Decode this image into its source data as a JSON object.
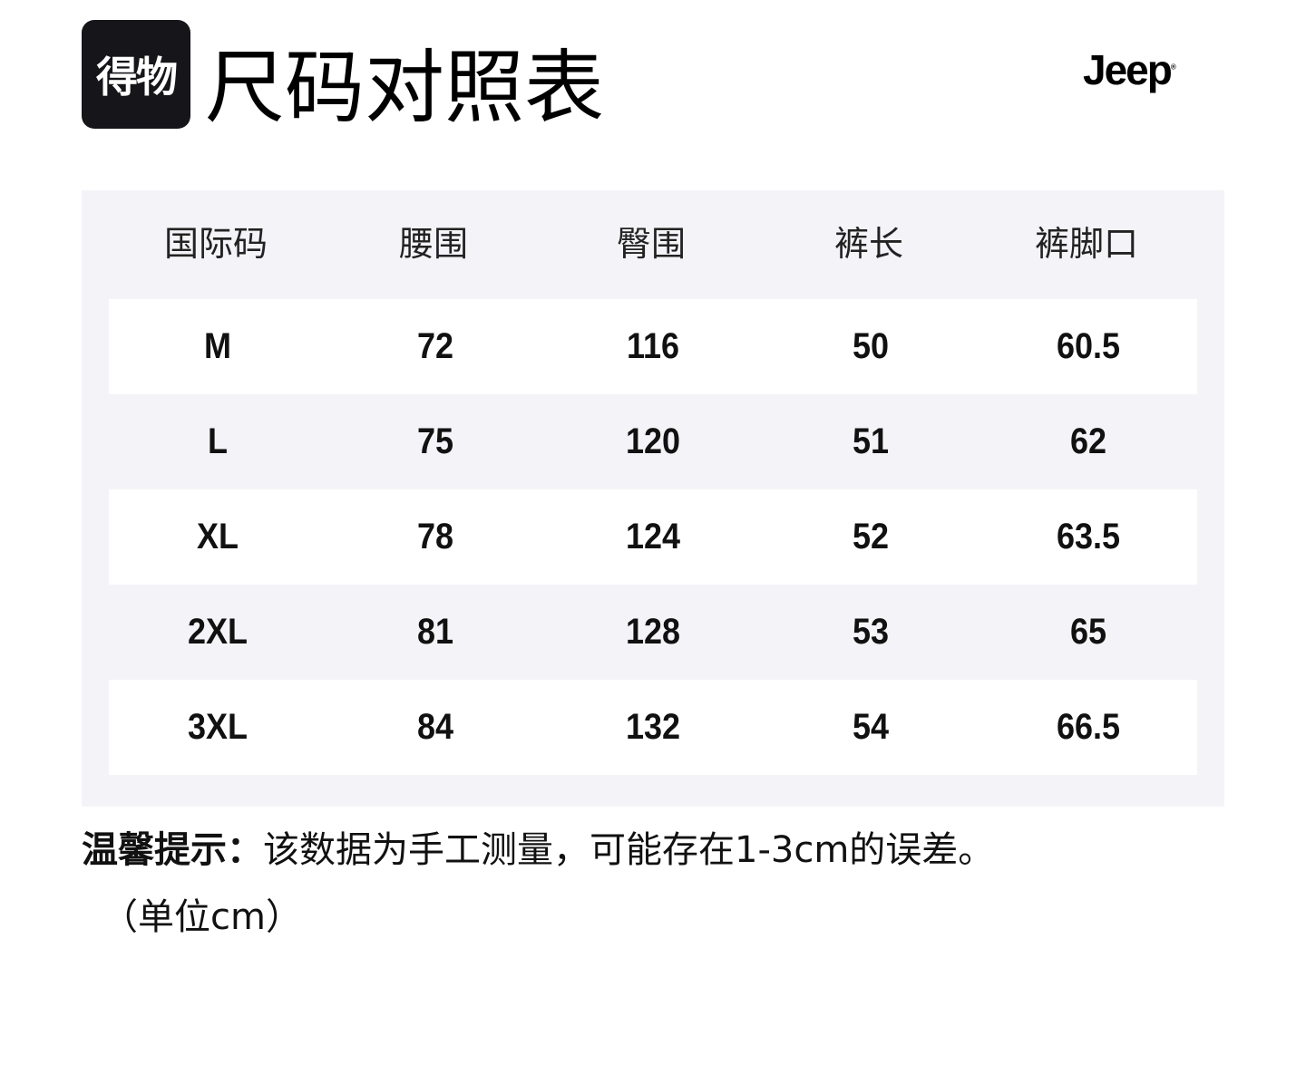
{
  "logo": {
    "text": "得物"
  },
  "title": "尺码对照表",
  "brand": "Jeep",
  "table": {
    "headers": [
      "国际码",
      "腰围",
      "臀围",
      "裤长",
      "裤脚口"
    ],
    "rows": [
      [
        "M",
        "72",
        "116",
        "50",
        "60.5"
      ],
      [
        "L",
        "75",
        "120",
        "51",
        "62"
      ],
      [
        "XL",
        "78",
        "124",
        "52",
        "63.5"
      ],
      [
        "2XL",
        "81",
        "128",
        "53",
        "65"
      ],
      [
        "3XL",
        "84",
        "132",
        "54",
        "66.5"
      ]
    ]
  },
  "note": {
    "label": "温馨提示：",
    "text": "该数据为手工测量，可能存在1-3cm的误差。",
    "unit": "（单位cm）"
  }
}
